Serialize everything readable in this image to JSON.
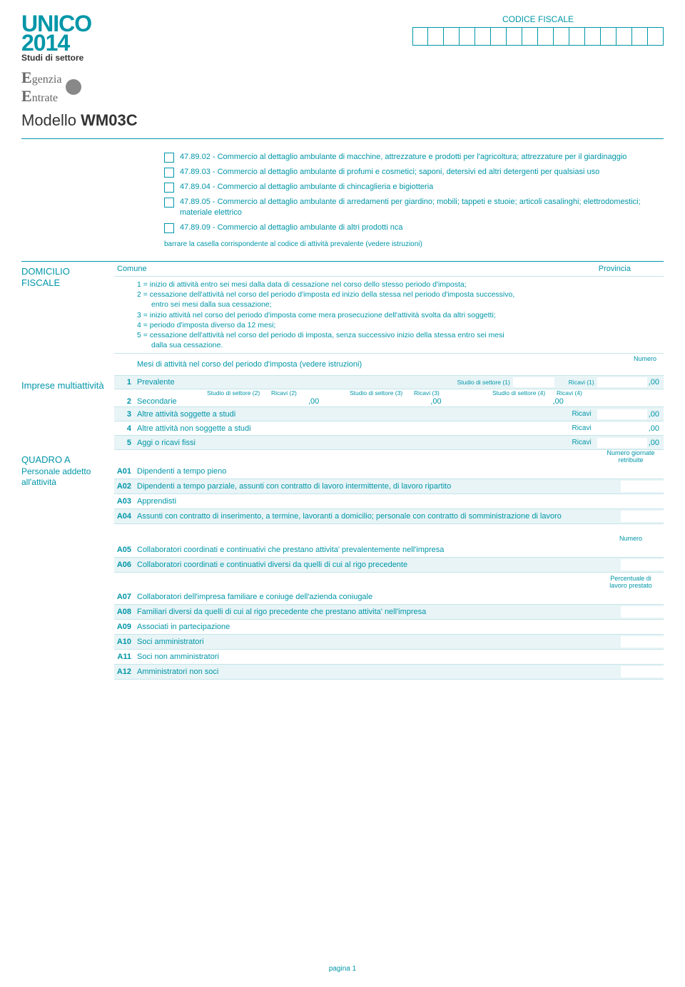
{
  "header": {
    "unico": "UNICO",
    "year": "2014",
    "studi": "Studi di settore",
    "agenzia_top": "genzia",
    "agenzia_bot": "ntrate",
    "modello_label": "Modello",
    "modello_code": "WM03C",
    "codice_fiscale": "CODICE FISCALE",
    "cf_count": 16
  },
  "activities": [
    {
      "code": "47.89.02",
      "desc": "Commercio al dettaglio ambulante di macchine, attrezzature e prodotti per l'agricoltura; attrezzature per il giardinaggio"
    },
    {
      "code": "47.89.03",
      "desc": "Commercio al dettaglio ambulante di profumi e cosmetici; saponi, detersivi ed altri detergenti per qualsiasi uso"
    },
    {
      "code": "47.89.04",
      "desc": "Commercio al dettaglio ambulante di chincaglieria e bigiotteria"
    },
    {
      "code": "47.89.05",
      "desc": "Commercio al dettaglio ambulante di arredamenti per giardino; mobili; tappeti e stuoie; articoli casalinghi; elettrodomestici; materiale elettrico"
    },
    {
      "code": "47.89.09",
      "desc": "Commercio al dettaglio ambulante di altri prodotti nca"
    }
  ],
  "barrare": "barrare la casella corrispondente al codice di attività prevalente (vedere istruzioni)",
  "domicilio": {
    "title": "DOMICILIO FISCALE",
    "comune": "Comune",
    "provincia": "Provincia",
    "legend": [
      "1 = inizio di attività entro sei mesi dalla data di cessazione nel corso dello stesso periodo d'imposta;",
      "2 = cessazione dell'attività nel corso del periodo d'imposta ed inizio della stessa nel periodo d'imposta successivo,",
      "      entro sei mesi dalla sua cessazione;",
      "3 = inizio attività nel corso del periodo d'imposta come mera prosecuzione dell'attività svolta da altri soggetti;",
      "4 = periodo d'imposta diverso da 12 mesi;",
      "5 = cessazione dell'attività nel corso del periodo di imposta, senza successivo inizio della stessa entro sei mesi",
      "      dalla sua cessazione."
    ],
    "mesi": "Mesi di attività nel corso del periodo d'imposta (vedere istruzioni)",
    "numero": "Numero"
  },
  "imprese": {
    "title": "Imprese multiattività",
    "r1": "Prevalente",
    "studio1": "Studio di settore (1)",
    "ricavi1": "Ricavi (1)",
    "studio2": "Studio di settore (2)",
    "ricavi2": "Ricavi (2)",
    "studio3": "Studio di settore (3)",
    "ricavi3": "Ricavi (3)",
    "studio4": "Studio di settore (4)",
    "ricavi4": "Ricavi (4)",
    "r2": "Secondarie",
    "r3": "Altre attività soggette a studi",
    "r4": "Altre attività non soggette a studi",
    "r5": "Aggi o ricavi fissi",
    "ricavi": "Ricavi",
    "suffix": ",00"
  },
  "quadroA": {
    "title": "QUADRO A",
    "subtitle": "Personale addetto all'attività",
    "giornate": "Numero giornate retribuite",
    "numero": "Numero",
    "percentuale": "Percentuale di lavoro prestato",
    "rows": [
      {
        "n": "A01",
        "t": "Dipendenti a tempo pieno"
      },
      {
        "n": "A02",
        "t": "Dipendenti a tempo parziale, assunti con contratto di lavoro intermittente, di lavoro ripartito"
      },
      {
        "n": "A03",
        "t": "Apprendisti"
      },
      {
        "n": "A04",
        "t": "Assunti con contratto di inserimento, a termine, lavoranti a domicilio; personale con contratto di somministrazione di lavoro"
      }
    ],
    "rows2": [
      {
        "n": "A05",
        "t": "Collaboratori coordinati e continuativi che prestano attivita' prevalentemente nell'impresa"
      },
      {
        "n": "A06",
        "t": "Collaboratori coordinati e continuativi diversi da quelli di cui al rigo precedente"
      }
    ],
    "rows3": [
      {
        "n": "A07",
        "t": "Collaboratori dell'impresa familiare e coniuge dell'azienda coniugale"
      },
      {
        "n": "A08",
        "t": "Familiari diversi da quelli di cui al rigo precedente che prestano attivita' nell'impresa"
      },
      {
        "n": "A09",
        "t": "Associati in partecipazione"
      },
      {
        "n": "A10",
        "t": "Soci amministratori"
      },
      {
        "n": "A11",
        "t": "Soci non amministratori"
      },
      {
        "n": "A12",
        "t": "Amministratori non soci"
      }
    ]
  },
  "pagina": "pagina 1",
  "colors": {
    "primary": "#0096a8",
    "alt_bg": "#e8f4f6",
    "border": "#c5e5e9"
  }
}
